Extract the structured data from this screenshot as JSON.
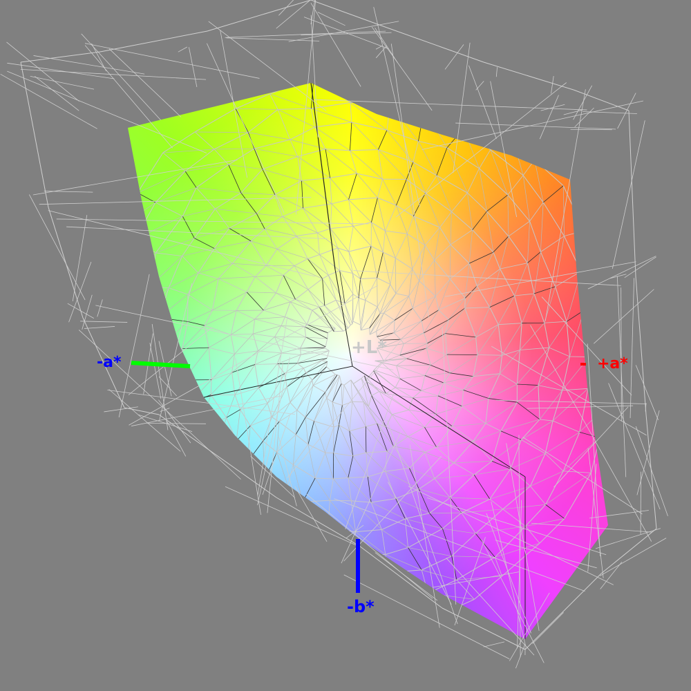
{
  "axes": {
    "plus_l": {
      "label": "+L*",
      "color": "#c8c8c8"
    },
    "minus_a": {
      "label": "-a*",
      "color": "#0000ff",
      "line_color": "#00ff00"
    },
    "plus_a": {
      "label": "+a*",
      "color": "#ff0000"
    },
    "minus_b": {
      "label": "-b*",
      "color": "#0000ff",
      "line_color": "#0000ff"
    }
  },
  "colors": {
    "background": "#808080",
    "wireframe": "#d0d0d0",
    "mesh": "#303030"
  }
}
